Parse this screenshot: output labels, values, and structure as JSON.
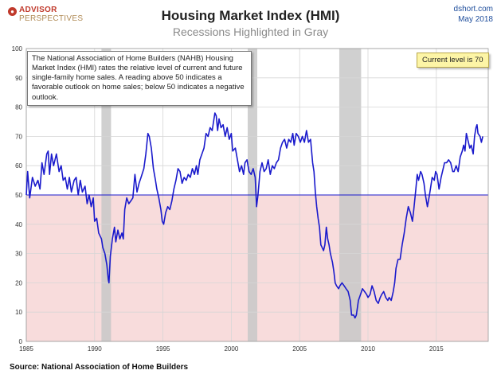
{
  "brand": {
    "line1": "ADVISOR",
    "line2": "PERSPECTIVES"
  },
  "site": "dshort.com",
  "date": "May 2018",
  "source": "Source: National Association of Home Builders",
  "colors": {
    "line": "#1a1acc",
    "recession": "#c8c8c8",
    "negative_zone": "#f8dcdc",
    "fifty_line": "#1a1acc",
    "grid": "#d6d6d6",
    "current_box": "#fdf5a6"
  },
  "chart_data": {
    "type": "line",
    "title": "Housing Market Index (HMI)",
    "subtitle": "Recessions Highlighted in Gray",
    "note": "The National Association of Home Builders (NAHB) Housing Market Index (HMI) rates the relative level of current and future single-family home sales. A reading above 50 indicates a favorable outlook on home sales; below 50 indicates a negative outlook.",
    "current_label": "Current level is 70",
    "xlim": [
      1985.0,
      2018.8
    ],
    "ylim": [
      0,
      100
    ],
    "yticks": [
      0,
      10,
      20,
      30,
      40,
      50,
      60,
      70,
      80,
      90,
      100
    ],
    "xticks": [
      1985,
      1990,
      1995,
      2000,
      2005,
      2010,
      2015
    ],
    "threshold": 50,
    "recessions": [
      [
        1990.5,
        1991.2
      ],
      [
        2001.2,
        2001.9
      ],
      [
        2007.9,
        2009.5
      ]
    ],
    "series": [
      {
        "name": "HMI",
        "points": [
          [
            1985.0,
            50
          ],
          [
            1985.1,
            58
          ],
          [
            1985.25,
            49
          ],
          [
            1985.45,
            56
          ],
          [
            1985.65,
            53
          ],
          [
            1985.85,
            55
          ],
          [
            1986.0,
            52
          ],
          [
            1986.15,
            61
          ],
          [
            1986.3,
            57
          ],
          [
            1986.5,
            64
          ],
          [
            1986.6,
            65
          ],
          [
            1986.7,
            57
          ],
          [
            1986.85,
            64
          ],
          [
            1987.0,
            60
          ],
          [
            1987.2,
            64
          ],
          [
            1987.4,
            58
          ],
          [
            1987.55,
            60
          ],
          [
            1987.7,
            55
          ],
          [
            1987.85,
            56
          ],
          [
            1988.0,
            52
          ],
          [
            1988.15,
            56
          ],
          [
            1988.3,
            51
          ],
          [
            1988.5,
            55
          ],
          [
            1988.65,
            56
          ],
          [
            1988.8,
            50
          ],
          [
            1988.95,
            55
          ],
          [
            1989.1,
            51
          ],
          [
            1989.3,
            53
          ],
          [
            1989.45,
            47
          ],
          [
            1989.6,
            50
          ],
          [
            1989.75,
            46
          ],
          [
            1989.9,
            49
          ],
          [
            1990.0,
            41
          ],
          [
            1990.15,
            42
          ],
          [
            1990.3,
            37
          ],
          [
            1990.5,
            35
          ],
          [
            1990.6,
            32
          ],
          [
            1990.75,
            30
          ],
          [
            1990.9,
            26
          ],
          [
            1991.0,
            21
          ],
          [
            1991.05,
            20
          ],
          [
            1991.15,
            29
          ],
          [
            1991.3,
            35
          ],
          [
            1991.45,
            39
          ],
          [
            1991.55,
            34
          ],
          [
            1991.7,
            38
          ],
          [
            1991.85,
            35
          ],
          [
            1992.0,
            37
          ],
          [
            1992.1,
            35
          ],
          [
            1992.2,
            45
          ],
          [
            1992.35,
            49
          ],
          [
            1992.5,
            47
          ],
          [
            1992.65,
            48
          ],
          [
            1992.8,
            49
          ],
          [
            1992.95,
            57
          ],
          [
            1993.1,
            51
          ],
          [
            1993.25,
            54
          ],
          [
            1993.4,
            56
          ],
          [
            1993.6,
            59
          ],
          [
            1993.75,
            64
          ],
          [
            1993.9,
            71
          ],
          [
            1994.0,
            70
          ],
          [
            1994.15,
            66
          ],
          [
            1994.3,
            59
          ],
          [
            1994.45,
            55
          ],
          [
            1994.55,
            52
          ],
          [
            1994.7,
            49
          ],
          [
            1994.85,
            45
          ],
          [
            1994.95,
            41
          ],
          [
            1995.05,
            40
          ],
          [
            1995.2,
            44
          ],
          [
            1995.35,
            46
          ],
          [
            1995.5,
            45
          ],
          [
            1995.65,
            48
          ],
          [
            1995.8,
            52
          ],
          [
            1995.95,
            55
          ],
          [
            1996.1,
            59
          ],
          [
            1996.25,
            58
          ],
          [
            1996.4,
            54
          ],
          [
            1996.55,
            56
          ],
          [
            1996.7,
            55
          ],
          [
            1996.85,
            57
          ],
          [
            1997.0,
            56
          ],
          [
            1997.15,
            59
          ],
          [
            1997.3,
            57
          ],
          [
            1997.45,
            60
          ],
          [
            1997.55,
            57
          ],
          [
            1997.7,
            62
          ],
          [
            1997.85,
            64
          ],
          [
            1998.0,
            66
          ],
          [
            1998.15,
            71
          ],
          [
            1998.3,
            70
          ],
          [
            1998.45,
            73
          ],
          [
            1998.6,
            72
          ],
          [
            1998.8,
            78
          ],
          [
            1998.9,
            77
          ],
          [
            1999.0,
            72
          ],
          [
            1999.1,
            76
          ],
          [
            1999.25,
            73
          ],
          [
            1999.4,
            74
          ],
          [
            1999.55,
            70
          ],
          [
            1999.7,
            73
          ],
          [
            1999.85,
            69
          ],
          [
            2000.0,
            71
          ],
          [
            2000.1,
            65
          ],
          [
            2000.3,
            66
          ],
          [
            2000.45,
            62
          ],
          [
            2000.6,
            58
          ],
          [
            2000.75,
            60
          ],
          [
            2000.9,
            57
          ],
          [
            2001.0,
            61
          ],
          [
            2001.15,
            62
          ],
          [
            2001.3,
            58
          ],
          [
            2001.45,
            57
          ],
          [
            2001.6,
            59
          ],
          [
            2001.75,
            56
          ],
          [
            2001.85,
            46
          ],
          [
            2001.95,
            50
          ],
          [
            2002.1,
            58
          ],
          [
            2002.25,
            61
          ],
          [
            2002.4,
            58
          ],
          [
            2002.55,
            59
          ],
          [
            2002.7,
            62
          ],
          [
            2002.85,
            57
          ],
          [
            2003.0,
            60
          ],
          [
            2003.15,
            59
          ],
          [
            2003.3,
            61
          ],
          [
            2003.45,
            62
          ],
          [
            2003.6,
            66
          ],
          [
            2003.75,
            68
          ],
          [
            2003.9,
            69
          ],
          [
            2004.05,
            66
          ],
          [
            2004.2,
            69
          ],
          [
            2004.35,
            68
          ],
          [
            2004.5,
            71
          ],
          [
            2004.6,
            67
          ],
          [
            2004.75,
            71
          ],
          [
            2004.9,
            70
          ],
          [
            2005.05,
            68
          ],
          [
            2005.2,
            70
          ],
          [
            2005.35,
            68
          ],
          [
            2005.5,
            72
          ],
          [
            2005.65,
            68
          ],
          [
            2005.8,
            69
          ],
          [
            2005.95,
            61
          ],
          [
            2006.05,
            58
          ],
          [
            2006.15,
            51
          ],
          [
            2006.25,
            46
          ],
          [
            2006.35,
            42
          ],
          [
            2006.45,
            39
          ],
          [
            2006.55,
            33
          ],
          [
            2006.65,
            32
          ],
          [
            2006.75,
            31
          ],
          [
            2006.85,
            33
          ],
          [
            2006.95,
            39
          ],
          [
            2007.05,
            35
          ],
          [
            2007.15,
            33
          ],
          [
            2007.25,
            30
          ],
          [
            2007.4,
            27
          ],
          [
            2007.5,
            24
          ],
          [
            2007.6,
            20
          ],
          [
            2007.7,
            19
          ],
          [
            2007.85,
            18
          ],
          [
            2007.95,
            19
          ],
          [
            2008.1,
            20
          ],
          [
            2008.25,
            19
          ],
          [
            2008.4,
            18
          ],
          [
            2008.55,
            17
          ],
          [
            2008.7,
            14
          ],
          [
            2008.8,
            9
          ],
          [
            2008.95,
            9
          ],
          [
            2009.05,
            8
          ],
          [
            2009.15,
            9
          ],
          [
            2009.3,
            14
          ],
          [
            2009.45,
            16
          ],
          [
            2009.6,
            18
          ],
          [
            2009.75,
            17
          ],
          [
            2009.9,
            16
          ],
          [
            2010.0,
            15
          ],
          [
            2010.15,
            16
          ],
          [
            2010.3,
            19
          ],
          [
            2010.45,
            17
          ],
          [
            2010.6,
            14
          ],
          [
            2010.75,
            13
          ],
          [
            2010.9,
            15
          ],
          [
            2011.0,
            16
          ],
          [
            2011.15,
            17
          ],
          [
            2011.3,
            15
          ],
          [
            2011.45,
            14
          ],
          [
            2011.55,
            15
          ],
          [
            2011.7,
            14
          ],
          [
            2011.85,
            17
          ],
          [
            2011.95,
            20
          ],
          [
            2012.05,
            25
          ],
          [
            2012.2,
            28
          ],
          [
            2012.35,
            28
          ],
          [
            2012.5,
            33
          ],
          [
            2012.65,
            37
          ],
          [
            2012.8,
            42
          ],
          [
            2012.95,
            46
          ],
          [
            2013.1,
            44
          ],
          [
            2013.25,
            41
          ],
          [
            2013.35,
            45
          ],
          [
            2013.5,
            52
          ],
          [
            2013.6,
            57
          ],
          [
            2013.7,
            55
          ],
          [
            2013.85,
            58
          ],
          [
            2013.95,
            57
          ],
          [
            2014.1,
            54
          ],
          [
            2014.2,
            50
          ],
          [
            2014.35,
            46
          ],
          [
            2014.5,
            50
          ],
          [
            2014.6,
            53
          ],
          [
            2014.7,
            56
          ],
          [
            2014.85,
            55
          ],
          [
            2014.95,
            58
          ],
          [
            2015.05,
            57
          ],
          [
            2015.2,
            52
          ],
          [
            2015.35,
            56
          ],
          [
            2015.5,
            59
          ],
          [
            2015.6,
            61
          ],
          [
            2015.75,
            61
          ],
          [
            2015.9,
            62
          ],
          [
            2016.05,
            61
          ],
          [
            2016.2,
            58
          ],
          [
            2016.3,
            58
          ],
          [
            2016.45,
            60
          ],
          [
            2016.6,
            58
          ],
          [
            2016.75,
            63
          ],
          [
            2016.9,
            65
          ],
          [
            2017.0,
            67
          ],
          [
            2017.1,
            65
          ],
          [
            2017.2,
            71
          ],
          [
            2017.35,
            68
          ],
          [
            2017.45,
            66
          ],
          [
            2017.55,
            67
          ],
          [
            2017.7,
            64
          ],
          [
            2017.8,
            70
          ],
          [
            2017.9,
            73
          ],
          [
            2017.98,
            74
          ],
          [
            2018.05,
            71
          ],
          [
            2018.2,
            70
          ],
          [
            2018.3,
            68
          ],
          [
            2018.4,
            70
          ]
        ]
      }
    ]
  }
}
